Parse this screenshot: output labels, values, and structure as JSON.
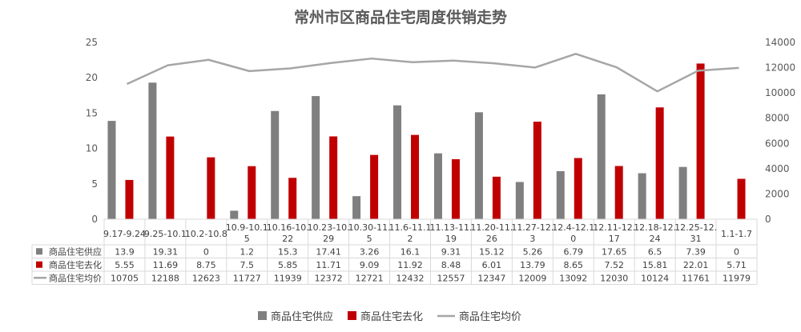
{
  "chart_data": {
    "type": "bar",
    "title": "常州市区商品住宅周度供销走势",
    "categories": [
      [
        "9.17-9.24"
      ],
      [
        "9.25-10.1"
      ],
      [
        "10.2-10.8"
      ],
      [
        "10.9-10.1",
        "5"
      ],
      [
        "10.16-10.",
        "22"
      ],
      [
        "10.23-10.",
        "29"
      ],
      [
        "10.30-11.",
        "5"
      ],
      [
        "11.6-11.1",
        "2"
      ],
      [
        "11.13-11.",
        "19"
      ],
      [
        "11.20-11.",
        "26"
      ],
      [
        "11.27-12.",
        "3"
      ],
      [
        "12.4-12.1",
        "0"
      ],
      [
        "12.11-12.",
        "17"
      ],
      [
        "12.18-12.",
        "24"
      ],
      [
        "12.25-12.",
        "31"
      ],
      [
        "1.1-1.7"
      ]
    ],
    "series": [
      {
        "name": "商品住宅供应",
        "type": "bar",
        "axis": "left",
        "color": "#7f7f7f",
        "values": [
          13.9,
          19.31,
          0,
          1.2,
          15.3,
          17.41,
          3.26,
          16.1,
          9.31,
          15.12,
          5.26,
          6.79,
          17.65,
          6.5,
          7.39,
          0
        ]
      },
      {
        "name": "商品住宅去化",
        "type": "bar",
        "axis": "left",
        "color": "#c00000",
        "values": [
          5.55,
          11.69,
          8.75,
          7.5,
          5.85,
          11.71,
          9.09,
          11.92,
          8.48,
          6.01,
          13.79,
          8.65,
          7.52,
          15.81,
          22.01,
          5.71
        ]
      },
      {
        "name": "商品住宅均价",
        "type": "line",
        "axis": "right",
        "color": "#a6a6a6",
        "values": [
          10705,
          12188,
          12623,
          11727,
          11939,
          12372,
          12721,
          12432,
          12557,
          12347,
          12009,
          13092,
          12030,
          10124,
          11761,
          11979
        ]
      }
    ],
    "ylim": [
      0,
      25
    ],
    "yticks": [
      0,
      5,
      10,
      15,
      20,
      25
    ],
    "y2lim": [
      0,
      14000
    ],
    "y2ticks": [
      0,
      2000,
      4000,
      6000,
      8000,
      10000,
      12000,
      14000
    ],
    "grid": false,
    "legend": "bottom",
    "data_table": true
  }
}
